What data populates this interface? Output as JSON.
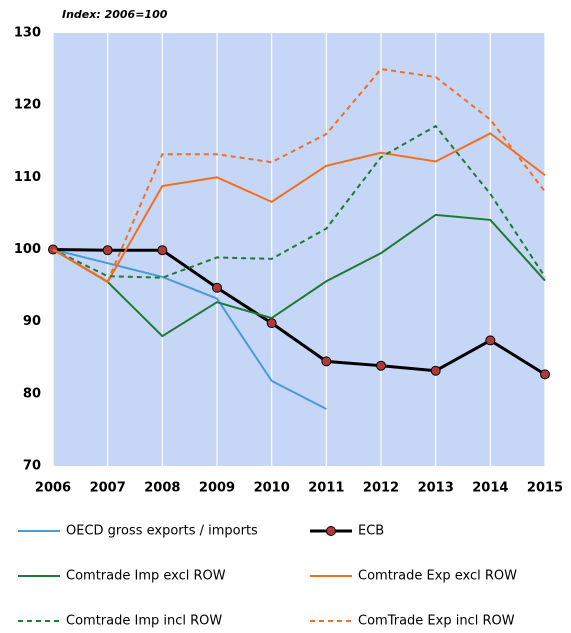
{
  "chart_data": {
    "type": "line",
    "subtitle": "Index: 2006=100",
    "x": [
      2006,
      2007,
      2008,
      2009,
      2010,
      2011,
      2012,
      2013,
      2014,
      2015
    ],
    "xlim": [
      2006,
      2015
    ],
    "xticks": [
      2006,
      2007,
      2008,
      2009,
      2010,
      2011,
      2012,
      2013,
      2014,
      2015
    ],
    "ylim": [
      70,
      130
    ],
    "yticks": [
      70,
      80,
      90,
      100,
      110,
      120,
      130
    ],
    "grid": "vertical",
    "background": "#c6d6f6",
    "series": [
      {
        "name": "OECD gross exports / imports",
        "color": "#4a9bd6",
        "style": "solid",
        "values": [
          100,
          98.1,
          96.2,
          93.2,
          81.8,
          77.9,
          null,
          null,
          null,
          null
        ]
      },
      {
        "name": "ECB",
        "color": "#000000",
        "style": "solid",
        "markers": true,
        "marker_color": "#b03a3a",
        "values": [
          100,
          99.9,
          99.9,
          94.7,
          89.8,
          84.5,
          83.9,
          83.2,
          87.4,
          82.7
        ]
      },
      {
        "name": "Comtrade Imp excl ROW",
        "color": "#1e7a34",
        "style": "solid",
        "values": [
          100,
          95.5,
          88.0,
          92.7,
          90.5,
          95.6,
          99.5,
          104.8,
          104.1,
          95.7
        ]
      },
      {
        "name": "Comtrade Exp excl ROW",
        "color": "#f07020",
        "style": "solid",
        "values": [
          100,
          95.5,
          108.8,
          110.0,
          106.6,
          111.6,
          113.4,
          112.2,
          116.1,
          110.3
        ]
      },
      {
        "name": "Comtrade Imp incl ROW",
        "color": "#1e7a34",
        "style": "dashed",
        "values": [
          100,
          96.3,
          96.1,
          98.9,
          98.7,
          102.9,
          112.8,
          117.1,
          107.7,
          96.2
        ]
      },
      {
        "name": "ComTrade Exp incl ROW",
        "color": "#f07020",
        "style": "dashed",
        "values": [
          100,
          95.6,
          113.2,
          113.2,
          112.1,
          116.0,
          125.0,
          123.9,
          118.0,
          108.0
        ]
      }
    ]
  }
}
